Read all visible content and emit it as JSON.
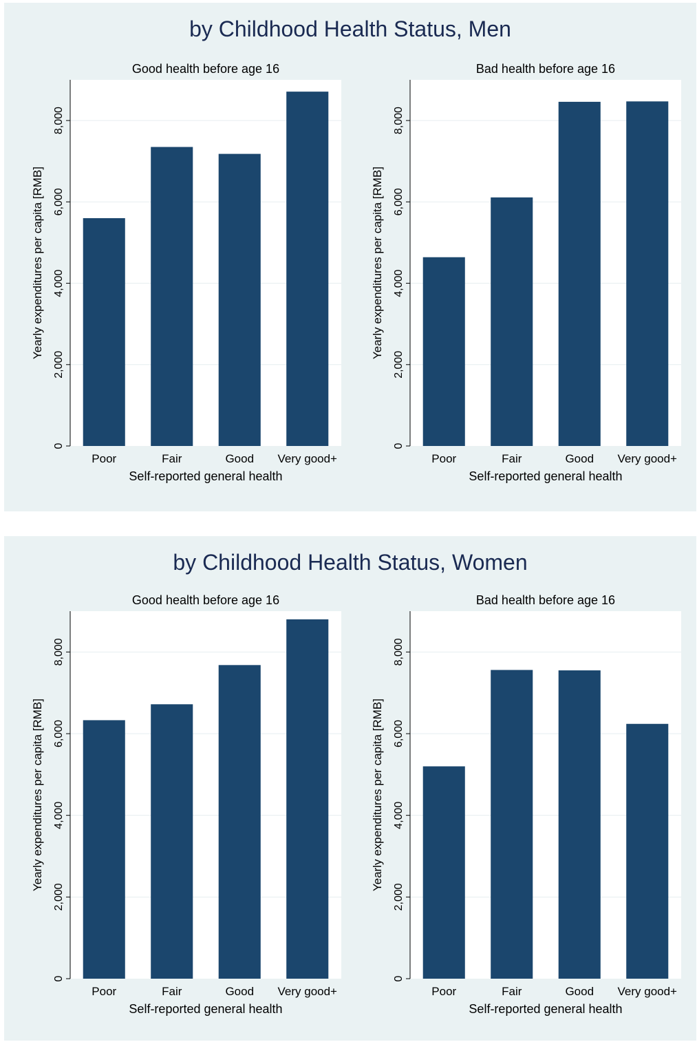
{
  "colors": {
    "bar": "#1b466d",
    "plot_bg": "#ffffff",
    "panel_bg": "#eaf2f3",
    "grid": "#e6eef0",
    "title": "#1a2a52"
  },
  "figures": [
    {
      "title": "by Childhood Health Status, Men"
    },
    {
      "title": "by Childhood Health Status, Women"
    }
  ],
  "chart_data": [
    {
      "type": "bar",
      "title": "Good health before age 16",
      "xlabel": "Self-reported general health",
      "ylabel": "Yearly expenditures per capita [RMB]",
      "categories": [
        "Poor",
        "Fair",
        "Good",
        "Very good+"
      ],
      "values": [
        5600,
        7350,
        7180,
        8710
      ],
      "ylim": [
        0,
        9000
      ],
      "yticks": [
        0,
        2000,
        4000,
        6000,
        8000
      ],
      "ytick_labels": [
        "0",
        "2,000",
        "4,000",
        "6,000",
        "8,000"
      ],
      "grid": true
    },
    {
      "type": "bar",
      "title": "Bad health before age 16",
      "xlabel": "Self-reported general health",
      "ylabel": "Yearly expenditures per capita [RMB]",
      "categories": [
        "Poor",
        "Fair",
        "Good",
        "Very good+"
      ],
      "values": [
        4640,
        6110,
        8460,
        8470
      ],
      "ylim": [
        0,
        9000
      ],
      "yticks": [
        0,
        2000,
        4000,
        6000,
        8000
      ],
      "ytick_labels": [
        "0",
        "2,000",
        "4,000",
        "6,000",
        "8,000"
      ],
      "grid": true
    },
    {
      "type": "bar",
      "title": "Good health before age 16",
      "xlabel": "Self-reported general health",
      "ylabel": "Yearly expenditures per capita [RMB]",
      "categories": [
        "Poor",
        "Fair",
        "Good",
        "Very good+"
      ],
      "values": [
        6330,
        6720,
        7680,
        8800
      ],
      "ylim": [
        0,
        9000
      ],
      "yticks": [
        0,
        2000,
        4000,
        6000,
        8000
      ],
      "ytick_labels": [
        "0",
        "2,000",
        "4,000",
        "6,000",
        "8,000"
      ],
      "grid": true
    },
    {
      "type": "bar",
      "title": "Bad health before age 16",
      "xlabel": "Self-reported general health",
      "ylabel": "Yearly expenditures per capita [RMB]",
      "categories": [
        "Poor",
        "Fair",
        "Good",
        "Very good+"
      ],
      "values": [
        5200,
        7560,
        7550,
        6240
      ],
      "ylim": [
        0,
        9000
      ],
      "yticks": [
        0,
        2000,
        4000,
        6000,
        8000
      ],
      "ytick_labels": [
        "0",
        "2,000",
        "4,000",
        "6,000",
        "8,000"
      ],
      "grid": true
    }
  ]
}
